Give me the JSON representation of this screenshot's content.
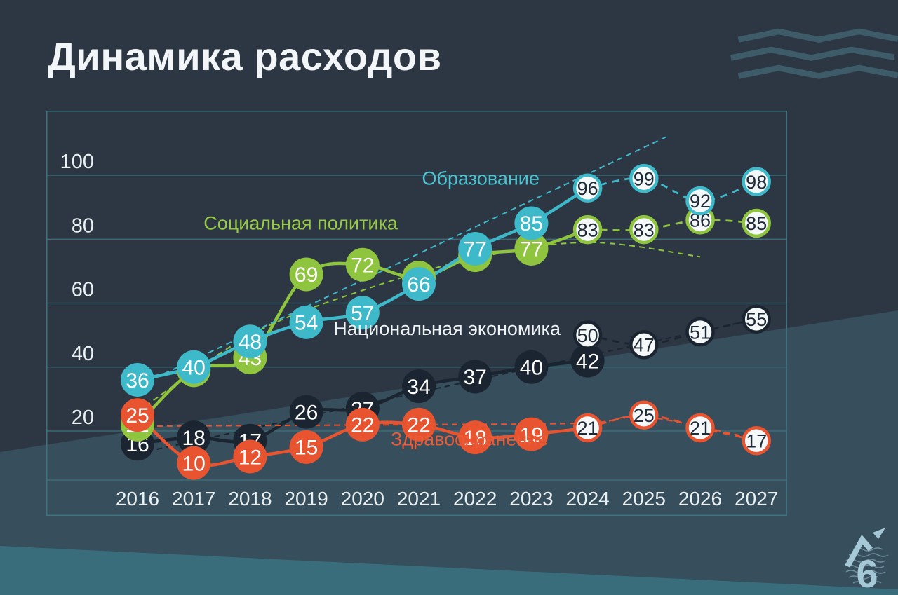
{
  "page": {
    "title": "Динамика расходов"
  },
  "logo": {
    "glyph": "6"
  },
  "chart_data": {
    "type": "line",
    "title": "Динамика расходов",
    "x": [
      2016,
      2017,
      2018,
      2019,
      2020,
      2021,
      2022,
      2023,
      2024,
      2025,
      2026,
      2027
    ],
    "y_ticks": [
      100,
      80,
      60,
      40,
      20
    ],
    "ylim": [
      4,
      121
    ],
    "grid": true,
    "legend_position": "inline-labels",
    "forecast_style": "open-circle-markers-with-dashed-line",
    "series": [
      {
        "id": "national-economy",
        "name": "Национальная экономика",
        "color": "#1b2531",
        "label_color": "#eef3f5",
        "actual_years": [
          2016,
          2017,
          2018,
          2019,
          2020,
          2021,
          2022,
          2023,
          2024
        ],
        "actual_values": [
          16,
          18,
          17,
          26,
          27,
          34,
          37,
          40,
          42
        ],
        "forecast_years": [
          2024,
          2025,
          2026,
          2027
        ],
        "forecast_values": [
          50,
          47,
          51,
          55
        ],
        "trend": [
          [
            2016,
            13
          ],
          [
            2027,
            55
          ]
        ],
        "label_pos": [
          2021.5,
          50
        ]
      },
      {
        "id": "social-policy",
        "name": "Социальная политика",
        "color": "#8ec43e",
        "label_color": "#97ca45",
        "actual_years": [
          2016,
          2017,
          2018,
          2019,
          2020,
          2021,
          2022,
          2023
        ],
        "actual_values": [
          22,
          39,
          43,
          69,
          72,
          68,
          75,
          77
        ],
        "forecast_years": [
          2024,
          2025,
          2026,
          2027
        ],
        "forecast_values": [
          83,
          83,
          86,
          85
        ],
        "trend": [
          [
            2016,
            26
          ],
          [
            2018,
            50
          ],
          [
            2020,
            64
          ],
          [
            2022,
            74
          ],
          [
            2024,
            79
          ],
          [
            2026,
            74.5
          ]
        ],
        "label_pos": [
          2018.9,
          83
        ]
      },
      {
        "id": "education",
        "name": "Образование",
        "color": "#3eb9c9",
        "label_color": "#4fc3d1",
        "actual_years": [
          2016,
          2017,
          2018,
          2019,
          2020,
          2021,
          2022,
          2023
        ],
        "actual_values": [
          36,
          40,
          48,
          54,
          57,
          66,
          77,
          85
        ],
        "forecast_years": [
          2024,
          2025,
          2026,
          2027
        ],
        "forecast_values": [
          96,
          99,
          92,
          98
        ],
        "trend": [
          [
            2016,
            34
          ],
          [
            2020.7,
            73
          ],
          [
            2025.4,
            112
          ]
        ],
        "label_pos": [
          2022.1,
          97
        ]
      },
      {
        "id": "healthcare",
        "name": "Здравоохранение",
        "color": "#e85330",
        "label_color": "#ea5b36",
        "actual_years": [
          2016,
          2017,
          2018,
          2019,
          2020,
          2021,
          2022,
          2023
        ],
        "actual_values": [
          25,
          10,
          12,
          15,
          22,
          22,
          18,
          19
        ],
        "forecast_years": [
          2024,
          2025,
          2026,
          2027
        ],
        "forecast_values": [
          21,
          25,
          21,
          17
        ],
        "trend": [
          [
            2016,
            21.5
          ],
          [
            2021,
            22
          ],
          [
            2024,
            22.5
          ],
          [
            2025,
            24.5
          ],
          [
            2027,
            17.5
          ]
        ],
        "label_pos": [
          2021.9,
          15.5
        ]
      }
    ]
  }
}
